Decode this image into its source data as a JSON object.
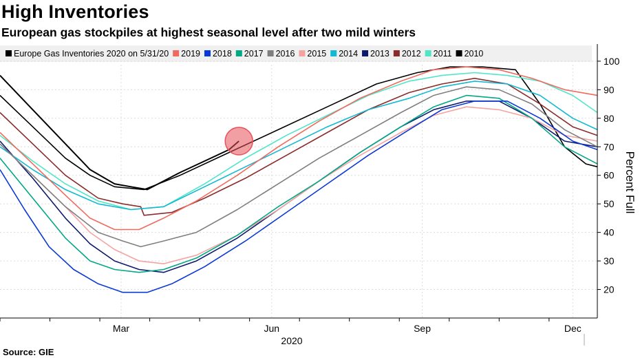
{
  "header": {
    "title": "High Inventories",
    "subtitle": "European gas stockpiles at highest seasonal level after two mild winters"
  },
  "footer": {
    "source": "Source: GIE"
  },
  "chart_data": {
    "type": "line",
    "title": "High Inventories",
    "subtitle": "European gas stockpiles at highest seasonal level after two mild winters",
    "ylabel": "Percent Full",
    "xlabel": "2020",
    "ylim": [
      10,
      106
    ],
    "xlim": [
      0,
      365
    ],
    "y_ticks": [
      20,
      30,
      40,
      50,
      60,
      70,
      80,
      90,
      100
    ],
    "x_ticks": [
      {
        "label": "Mar",
        "day": 74
      },
      {
        "label": "Jun",
        "day": 166
      },
      {
        "label": "Sep",
        "day": 258
      },
      {
        "label": "Dec",
        "day": 350
      }
    ],
    "year_label": "2020",
    "legend_position": "top",
    "highlight": {
      "day": 146,
      "value": 72,
      "color": "#e8505a"
    },
    "series": [
      {
        "name": "2010",
        "color": "#000000",
        "points": [
          [
            0,
            88
          ],
          [
            20,
            77
          ],
          [
            40,
            66
          ],
          [
            55,
            60
          ],
          [
            70,
            56
          ],
          [
            88,
            55
          ],
          [
            110,
            60
          ],
          [
            140,
            68
          ],
          [
            170,
            76
          ],
          [
            200,
            84
          ],
          [
            230,
            92
          ],
          [
            255,
            96
          ],
          [
            275,
            98
          ],
          [
            295,
            98
          ],
          [
            315,
            97
          ],
          [
            330,
            85
          ],
          [
            345,
            70
          ],
          [
            358,
            64
          ],
          [
            365,
            63
          ]
        ]
      },
      {
        "name": "2011",
        "color": "#4fe6c8",
        "points": [
          [
            0,
            74
          ],
          [
            20,
            65
          ],
          [
            40,
            57
          ],
          [
            60,
            51
          ],
          [
            80,
            48
          ],
          [
            100,
            49
          ],
          [
            125,
            57
          ],
          [
            150,
            66
          ],
          [
            175,
            74
          ],
          [
            200,
            81
          ],
          [
            225,
            88
          ],
          [
            250,
            93
          ],
          [
            270,
            95
          ],
          [
            290,
            96
          ],
          [
            310,
            95
          ],
          [
            330,
            93
          ],
          [
            350,
            88
          ],
          [
            365,
            82
          ]
        ]
      },
      {
        "name": "2012",
        "color": "#8b2c2c",
        "points": [
          [
            0,
            82
          ],
          [
            20,
            71
          ],
          [
            40,
            60
          ],
          [
            60,
            52
          ],
          [
            75,
            50
          ],
          [
            86,
            49
          ],
          [
            88,
            46
          ],
          [
            105,
            47
          ],
          [
            125,
            52
          ],
          [
            150,
            59
          ],
          [
            175,
            67
          ],
          [
            200,
            75
          ],
          [
            225,
            83
          ],
          [
            250,
            89
          ],
          [
            270,
            92
          ],
          [
            290,
            94
          ],
          [
            310,
            92
          ],
          [
            330,
            85
          ],
          [
            350,
            77
          ],
          [
            365,
            74
          ]
        ]
      },
      {
        "name": "2013",
        "color": "#0c1a6e",
        "points": [
          [
            0,
            72
          ],
          [
            20,
            59
          ],
          [
            40,
            45
          ],
          [
            55,
            36
          ],
          [
            70,
            30
          ],
          [
            85,
            27
          ],
          [
            100,
            26
          ],
          [
            120,
            30
          ],
          [
            145,
            38
          ],
          [
            170,
            48
          ],
          [
            195,
            58
          ],
          [
            220,
            68
          ],
          [
            245,
            77
          ],
          [
            265,
            83
          ],
          [
            285,
            86
          ],
          [
            305,
            86
          ],
          [
            325,
            80
          ],
          [
            345,
            72
          ],
          [
            365,
            70
          ]
        ]
      },
      {
        "name": "2014",
        "color": "#12b9d1",
        "points": [
          [
            0,
            70
          ],
          [
            20,
            62
          ],
          [
            40,
            55
          ],
          [
            60,
            50
          ],
          [
            80,
            48
          ],
          [
            100,
            49
          ],
          [
            125,
            56
          ],
          [
            150,
            63
          ],
          [
            175,
            70
          ],
          [
            200,
            77
          ],
          [
            225,
            83
          ],
          [
            250,
            87
          ],
          [
            270,
            91
          ],
          [
            290,
            93
          ],
          [
            310,
            92
          ],
          [
            330,
            88
          ],
          [
            350,
            80
          ],
          [
            365,
            76
          ]
        ]
      },
      {
        "name": "2015",
        "color": "#f4a3a0",
        "points": [
          [
            0,
            71
          ],
          [
            20,
            60
          ],
          [
            40,
            49
          ],
          [
            55,
            40
          ],
          [
            70,
            34
          ],
          [
            85,
            30
          ],
          [
            100,
            29
          ],
          [
            120,
            32
          ],
          [
            145,
            39
          ],
          [
            170,
            48
          ],
          [
            195,
            58
          ],
          [
            220,
            67
          ],
          [
            245,
            75
          ],
          [
            265,
            81
          ],
          [
            285,
            84
          ],
          [
            305,
            83
          ],
          [
            325,
            80
          ],
          [
            345,
            74
          ],
          [
            365,
            72
          ]
        ]
      },
      {
        "name": "2016",
        "color": "#7f7f7f",
        "points": [
          [
            0,
            71
          ],
          [
            20,
            60
          ],
          [
            40,
            49
          ],
          [
            60,
            40
          ],
          [
            75,
            37
          ],
          [
            86,
            35
          ],
          [
            100,
            37
          ],
          [
            120,
            40
          ],
          [
            145,
            48
          ],
          [
            170,
            57
          ],
          [
            195,
            66
          ],
          [
            220,
            74
          ],
          [
            245,
            82
          ],
          [
            265,
            88
          ],
          [
            285,
            91
          ],
          [
            305,
            90
          ],
          [
            325,
            85
          ],
          [
            345,
            76
          ],
          [
            365,
            70
          ]
        ]
      },
      {
        "name": "2017",
        "color": "#00a884",
        "points": [
          [
            0,
            66
          ],
          [
            20,
            52
          ],
          [
            40,
            38
          ],
          [
            55,
            30
          ],
          [
            70,
            27
          ],
          [
            85,
            26
          ],
          [
            100,
            27
          ],
          [
            120,
            31
          ],
          [
            145,
            39
          ],
          [
            170,
            49
          ],
          [
            195,
            58
          ],
          [
            220,
            68
          ],
          [
            245,
            77
          ],
          [
            265,
            84
          ],
          [
            285,
            88
          ],
          [
            305,
            87
          ],
          [
            325,
            80
          ],
          [
            345,
            70
          ],
          [
            365,
            64
          ]
        ]
      },
      {
        "name": "2018",
        "color": "#0b39d6",
        "points": [
          [
            0,
            62
          ],
          [
            15,
            48
          ],
          [
            30,
            35
          ],
          [
            45,
            27
          ],
          [
            60,
            22
          ],
          [
            75,
            19
          ],
          [
            90,
            19
          ],
          [
            105,
            22
          ],
          [
            125,
            28
          ],
          [
            150,
            37
          ],
          [
            175,
            47
          ],
          [
            200,
            57
          ],
          [
            225,
            67
          ],
          [
            250,
            76
          ],
          [
            270,
            83
          ],
          [
            290,
            86
          ],
          [
            310,
            86
          ],
          [
            330,
            80
          ],
          [
            350,
            72
          ],
          [
            365,
            69
          ]
        ]
      },
      {
        "name": "2019",
        "color": "#f06a5f",
        "points": [
          [
            0,
            75
          ],
          [
            20,
            64
          ],
          [
            40,
            53
          ],
          [
            55,
            45
          ],
          [
            70,
            41
          ],
          [
            85,
            41
          ],
          [
            100,
            45
          ],
          [
            120,
            51
          ],
          [
            145,
            60
          ],
          [
            170,
            70
          ],
          [
            195,
            79
          ],
          [
            220,
            87
          ],
          [
            245,
            93
          ],
          [
            265,
            97
          ],
          [
            285,
            98
          ],
          [
            305,
            97
          ],
          [
            325,
            94
          ],
          [
            345,
            90
          ],
          [
            365,
            88
          ]
        ]
      },
      {
        "name": "Europe Gas Inventories 2020 on 5/31/20",
        "color": "#000000",
        "points": [
          [
            0,
            95
          ],
          [
            20,
            83
          ],
          [
            40,
            71
          ],
          [
            55,
            62
          ],
          [
            70,
            57
          ],
          [
            80,
            56
          ],
          [
            90,
            55
          ],
          [
            110,
            61
          ],
          [
            125,
            65
          ],
          [
            140,
            69
          ],
          [
            146,
            72
          ]
        ]
      }
    ]
  }
}
